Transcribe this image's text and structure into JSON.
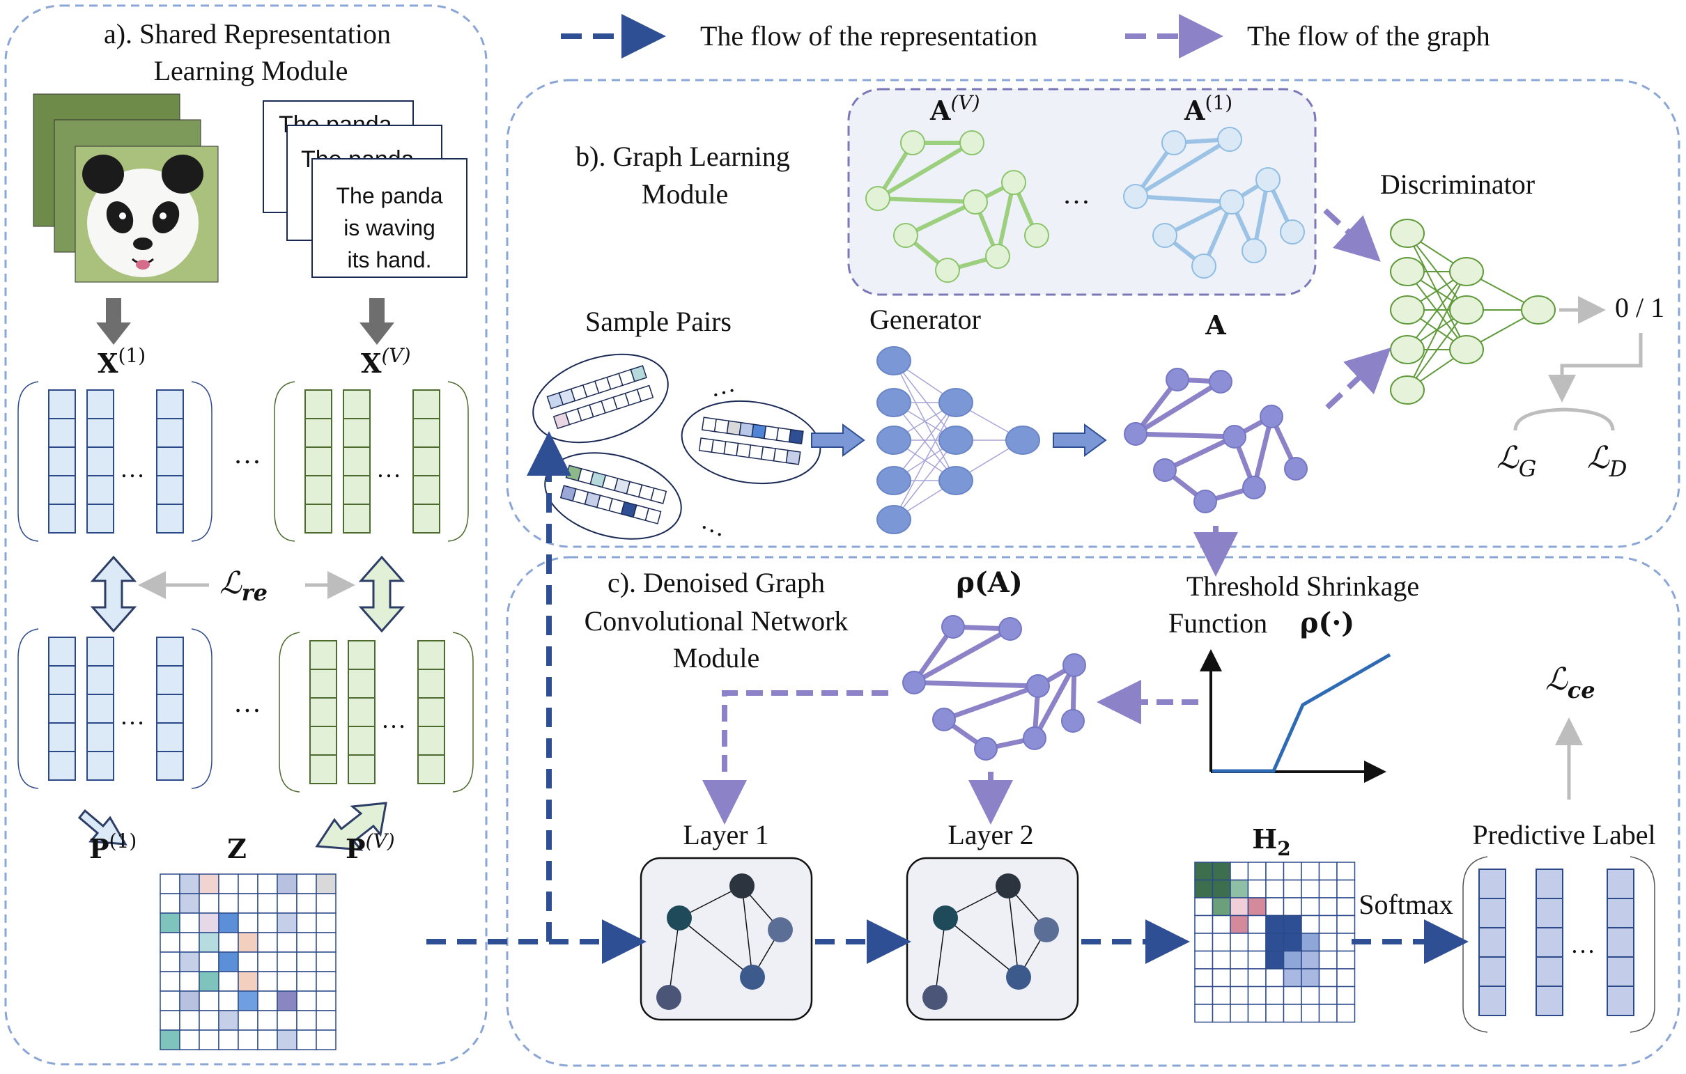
{
  "legend": {
    "representation_flow": "The flow of the representation",
    "graph_flow": "The flow of the graph"
  },
  "module_a": {
    "title_line1": "a). Shared Representation",
    "title_line2": "Learning Module",
    "text_card_line1": "The panda",
    "text_card_line2": "is waving",
    "text_card_line3": "its hand.",
    "back_card_1": "The panda",
    "back_card_2": "The panda",
    "x1": "X",
    "x1_sup": "(1)",
    "xv": "X",
    "xv_sup": "(V)",
    "loss_re": "ℒ",
    "loss_re_sub": "re",
    "p1": "P",
    "p1_sup": "(1)",
    "pv": "P",
    "pv_sup": "(V)",
    "z": "Z",
    "ellipsis": "…",
    "colors": {
      "view1": "#dce9f7",
      "viewV": "#e3f0d8",
      "border1": "#2c4a8a",
      "borderV": "#4d6b2e"
    }
  },
  "module_b": {
    "title_line1": "b). Graph Learning",
    "title_line2": "Module",
    "av": "A",
    "av_sup": "(V)",
    "a1": "A",
    "a1_sup": "(1)",
    "sample_pairs": "Sample Pairs",
    "generator": "Generator",
    "a": "A",
    "discriminator": "Discriminator",
    "output": "0 / 1",
    "loss_g": "ℒ",
    "loss_g_sub": "G",
    "loss_d": "ℒ",
    "loss_d_sub": "D",
    "ellipsis": "…"
  },
  "module_c": {
    "title_line1": "c). Denoised Graph",
    "title_line2": "Convolutional Network",
    "title_line3": "Module",
    "rho_a": "ρ(A)",
    "threshold_line1": "Threshold Shrinkage",
    "threshold_line2": "Function",
    "rho_fn": "ρ(·)",
    "loss_ce": "ℒ",
    "loss_ce_sub": "ce",
    "layer1": "Layer 1",
    "layer2": "Layer 2",
    "h2": "H",
    "h2_sub": "2",
    "softmax": "Softmax",
    "predictive_label": "Predictive Label",
    "ellipsis": "…"
  },
  "colors": {
    "representation_arrow": "#2f4f94",
    "graph_arrow": "#8c82c8",
    "module_border": "#8aa6d6",
    "green_graph": "#9ccf7e",
    "blue_graph": "#9cc3e6",
    "purple_graph": "#8c82c8",
    "discriminator": "#5f9a3a",
    "generator": "#7b97d6"
  }
}
